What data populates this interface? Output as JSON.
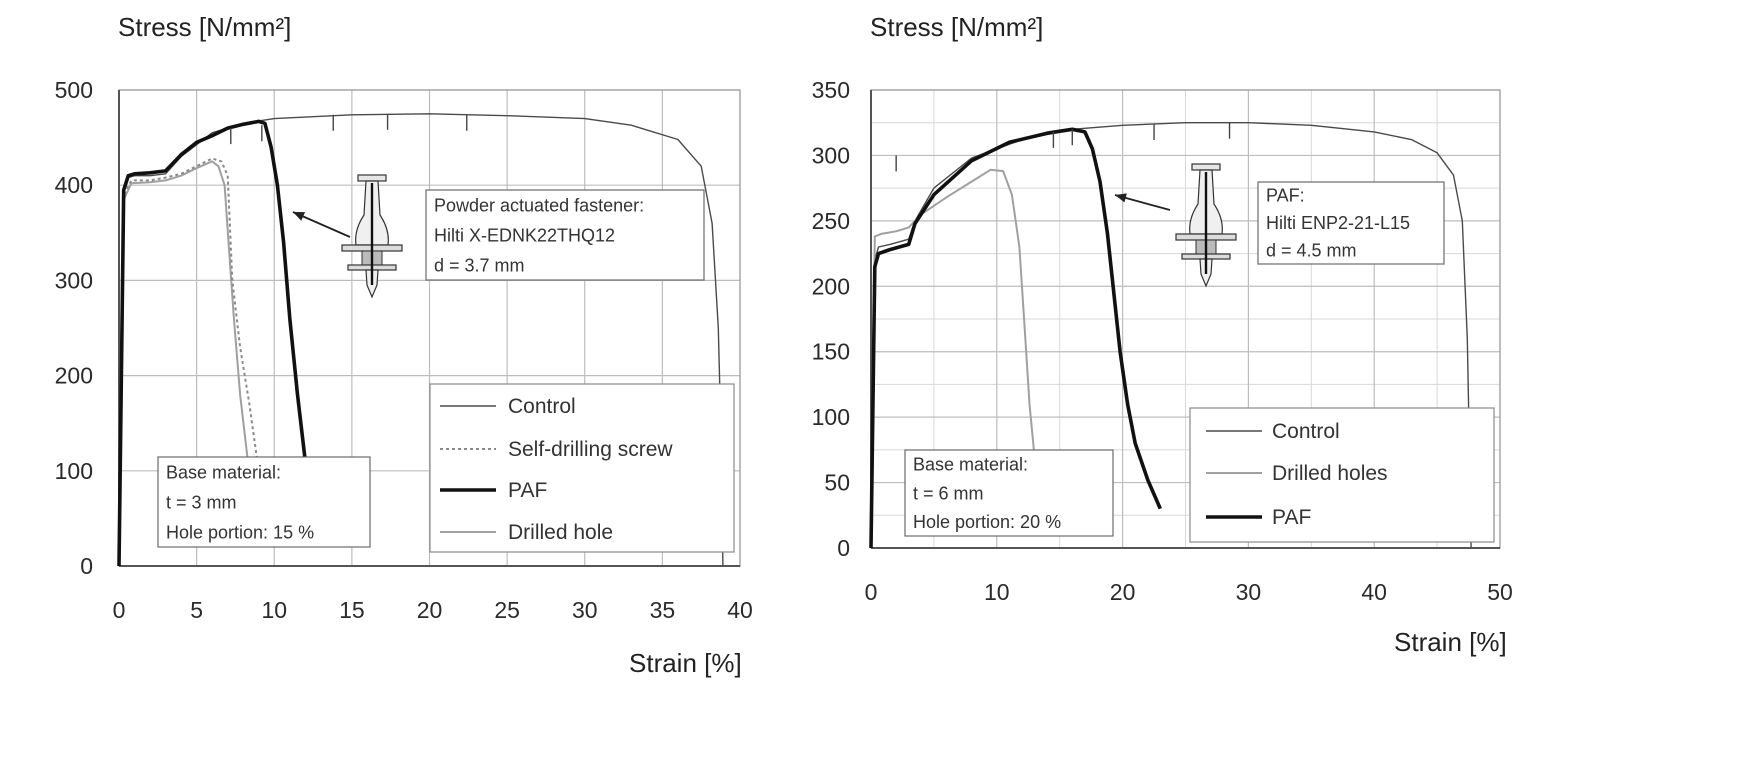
{
  "chart_data": [
    {
      "type": "line",
      "ylabel": "Stress [N/mm²]",
      "xlabel": "Strain [%]",
      "xlim": [
        0,
        40
      ],
      "ylim": [
        0,
        500
      ],
      "x_ticks": [
        0,
        5,
        10,
        15,
        20,
        25,
        30,
        35,
        40
      ],
      "y_ticks": [
        0,
        100,
        200,
        300,
        400,
        500
      ],
      "grid": true,
      "legend_position": "bottom-right",
      "legend": [
        "Control",
        "Self-drilling screw",
        "PAF",
        "Drilled hole"
      ],
      "series": [
        {
          "name": "Control",
          "style": "thin",
          "color": "#4a4a4a",
          "x": [
            0,
            0.3,
            0.6,
            1,
            2,
            3,
            4,
            6,
            8,
            10,
            15,
            20,
            25,
            30,
            33,
            36,
            37.5,
            38.2,
            38.6,
            38.8,
            38.9
          ],
          "y": [
            0,
            395,
            408,
            410,
            410,
            412,
            430,
            455,
            465,
            470,
            474,
            475,
            473,
            470,
            463,
            448,
            420,
            360,
            250,
            120,
            0
          ]
        },
        {
          "name": "Self-drilling screw",
          "style": "dotted",
          "color": "#8a8a8a",
          "x": [
            0,
            0.3,
            0.8,
            2,
            3,
            4,
            5,
            6,
            6.6,
            7,
            7.3,
            7.8,
            8.4,
            9
          ],
          "y": [
            0,
            390,
            405,
            405,
            408,
            412,
            420,
            428,
            425,
            410,
            300,
            230,
            170,
            100
          ]
        },
        {
          "name": "PAF",
          "style": "thick",
          "color": "#111111",
          "x": [
            0,
            0.3,
            0.6,
            1,
            2,
            3,
            4,
            5,
            6,
            7,
            8,
            9,
            9.4,
            9.8,
            10.2,
            10.6,
            11,
            11.5,
            12.0
          ],
          "y": [
            0,
            395,
            410,
            412,
            413,
            415,
            432,
            445,
            452,
            460,
            464,
            467,
            465,
            440,
            400,
            340,
            260,
            180,
            110
          ]
        },
        {
          "name": "Drilled hole",
          "style": "gray",
          "color": "#a0a0a0",
          "x": [
            0,
            0.3,
            0.8,
            2,
            3,
            4,
            5,
            6,
            6.4,
            6.8,
            7.1,
            7.4,
            7.8,
            8.3
          ],
          "y": [
            0,
            385,
            402,
            403,
            405,
            410,
            418,
            425,
            420,
            400,
            330,
            260,
            180,
            110
          ]
        }
      ],
      "notes": [
        {
          "label": "base",
          "lines": [
            "Base material:",
            "t = 3 mm",
            "Hole portion: 15 %"
          ]
        },
        {
          "label": "fastener",
          "lines": [
            "Powder actuated fastener:",
            "Hilti X-EDNK22THQ12",
            "d = 3.7 mm"
          ]
        }
      ]
    },
    {
      "type": "line",
      "ylabel": "Stress [N/mm²]",
      "xlabel": "Strain [%]",
      "xlim": [
        0,
        50
      ],
      "ylim": [
        0,
        350
      ],
      "x_ticks": [
        0,
        10,
        20,
        30,
        40,
        50
      ],
      "y_ticks": [
        0,
        50,
        100,
        150,
        200,
        250,
        300,
        350
      ],
      "grid": true,
      "legend_position": "bottom-right",
      "legend": [
        "Control",
        "Drilled holes",
        "PAF"
      ],
      "series": [
        {
          "name": "Control",
          "style": "thin",
          "color": "#4a4a4a",
          "x": [
            0,
            0.3,
            0.6,
            1.5,
            3,
            3.5,
            5,
            8,
            12,
            16,
            20,
            25,
            30,
            35,
            40,
            43,
            45,
            46.3,
            47,
            47.4,
            47.6,
            47.7
          ],
          "y": [
            0,
            220,
            230,
            232,
            236,
            250,
            275,
            298,
            312,
            320,
            323,
            325,
            325,
            323,
            318,
            312,
            302,
            285,
            250,
            160,
            60,
            0
          ]
        },
        {
          "name": "Drilled holes",
          "style": "gray",
          "color": "#a0a0a0",
          "x": [
            0,
            0.3,
            0.8,
            2,
            3,
            4,
            6,
            8,
            9.5,
            10.5,
            11.2,
            11.8,
            12.2,
            12.6,
            13.0
          ],
          "y": [
            0,
            238,
            240,
            242,
            245,
            255,
            268,
            280,
            289,
            288,
            270,
            230,
            170,
            110,
            70
          ]
        },
        {
          "name": "PAF",
          "style": "thick",
          "color": "#111111",
          "x": [
            0,
            0.3,
            0.6,
            1.5,
            3,
            3.5,
            5,
            8,
            11,
            14,
            16,
            17,
            17.6,
            18.2,
            18.8,
            19.3,
            19.8,
            20.4,
            21,
            22,
            23
          ],
          "y": [
            0,
            215,
            225,
            228,
            232,
            248,
            270,
            296,
            310,
            317,
            320,
            318,
            305,
            280,
            240,
            195,
            150,
            110,
            80,
            52,
            30
          ]
        }
      ],
      "notes": [
        {
          "label": "base",
          "lines": [
            "Base material:",
            "t = 6 mm",
            "Hole portion: 20 %"
          ]
        },
        {
          "label": "fastener",
          "lines": [
            "PAF:",
            "Hilti ENP2-21-L15",
            "d = 4.5 mm"
          ]
        }
      ]
    }
  ]
}
